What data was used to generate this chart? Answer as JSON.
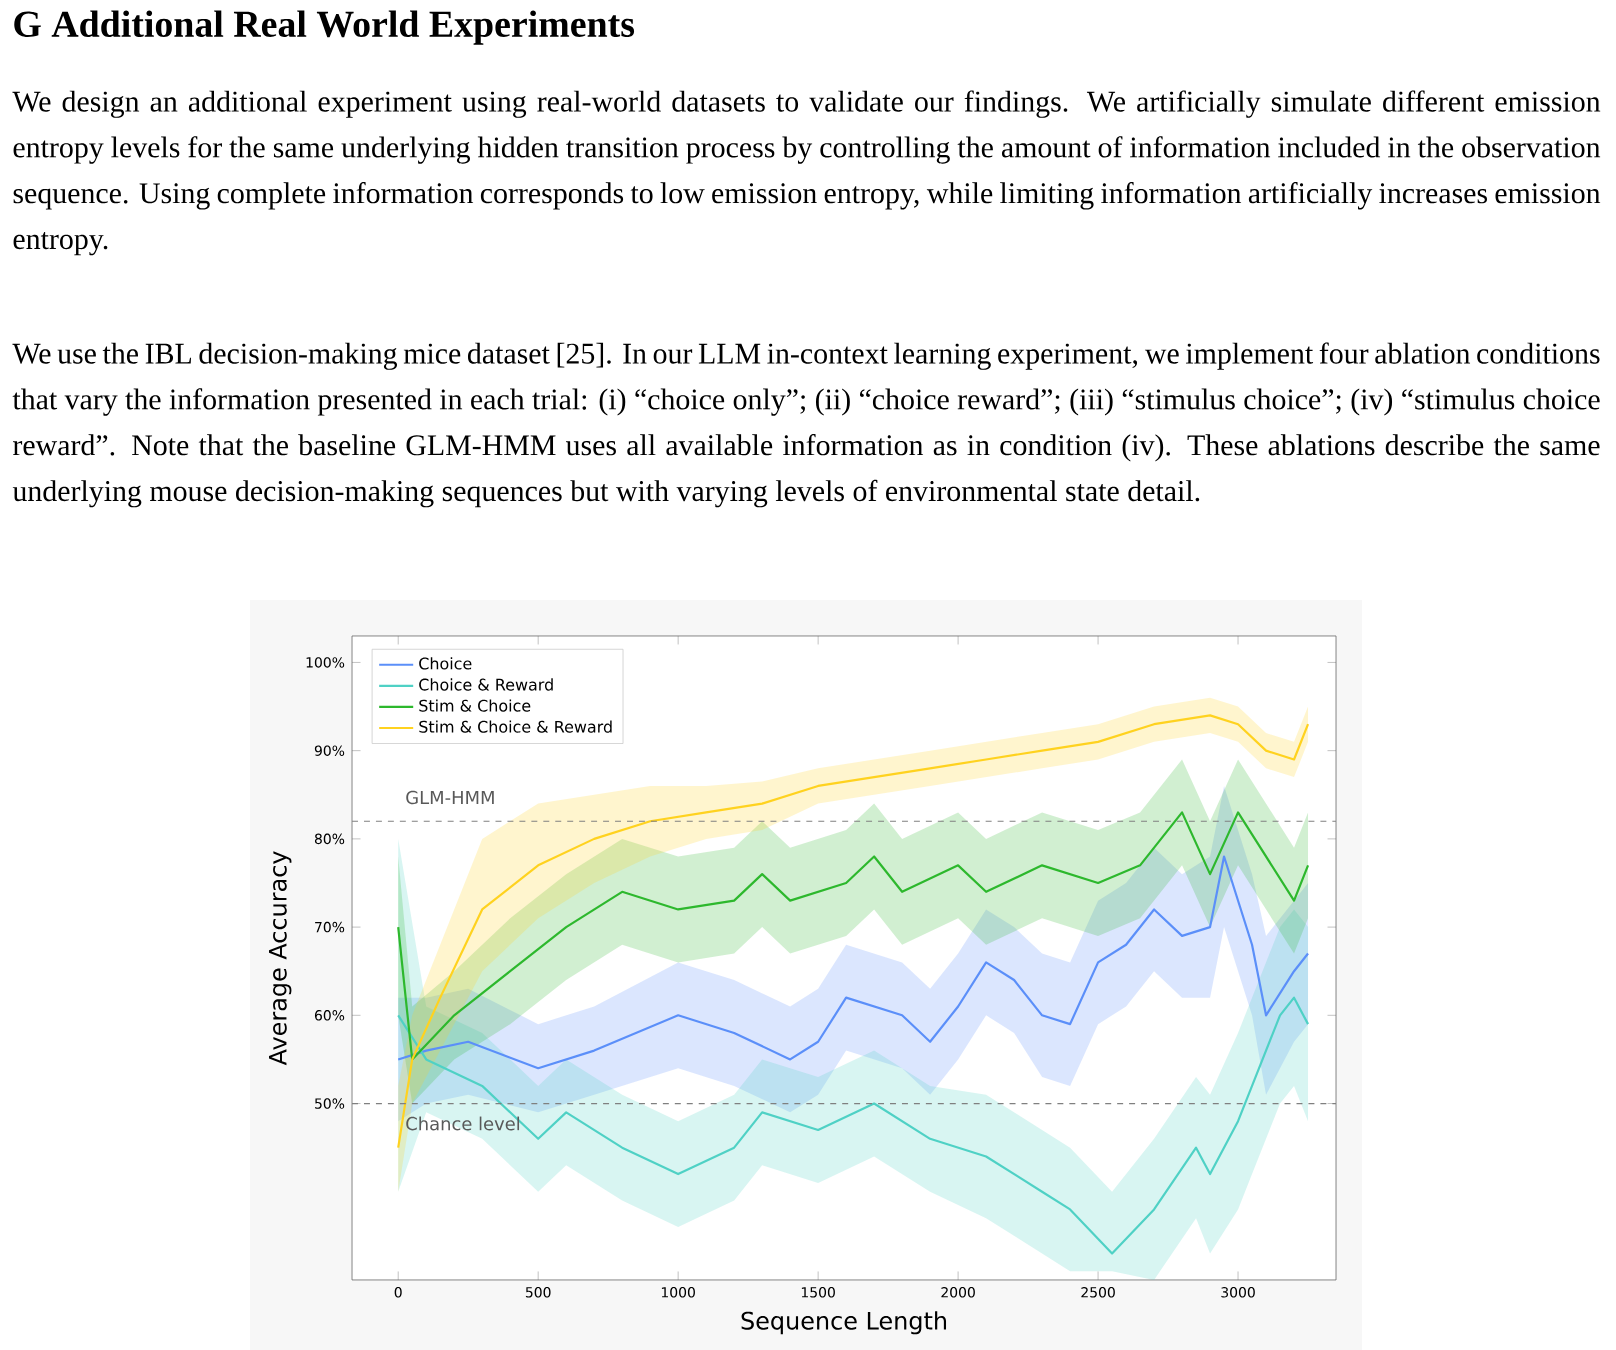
{
  "chart_data": {
    "type": "line",
    "title": "G Additional Real World Experiments",
    "annotations": [
      "We design an additional experiment using real-world datasets to validate our findings. We artificially simulate different emission entropy levels for the same underlying hidden transition process by controlling the amount of information included in the observation sequence. Using complete information corresponds to low emission entropy, while limiting information artificially increases emission entropy.",
      "We use the IBL decision-making mice dataset [25]. In our LLM in-context learning experiment, we implement four ablation conditions that vary the information presented in each trial: (i) “choice only”; (ii) “choice reward”; (iii) “stimulus choice”; (iv) “stimulus choice reward”. Note that the baseline GLM-HMM uses all available information as in condition (iv). These ablations describe the same underlying mouse decision-making sequences but with varying levels of environmental state detail."
    ],
    "xlabel": "Sequence Length",
    "ylabel": "Average Accuracy",
    "xlim": [
      -165,
      3350
    ],
    "ylim": [
      30,
      103
    ],
    "xticks": [
      0,
      500,
      1000,
      1500,
      2000,
      2500,
      3000
    ],
    "yticks": [
      {
        "value": 50,
        "label": "50%"
      },
      {
        "value": 60,
        "label": "60%"
      },
      {
        "value": 70,
        "label": "70%"
      },
      {
        "value": 80,
        "label": "80%"
      },
      {
        "value": 90,
        "label": "90%"
      },
      {
        "value": 100,
        "label": "100%"
      }
    ],
    "legend": "top left",
    "ref_lines": [
      {
        "axis": "y",
        "value": 82,
        "label": "GLM-HMM",
        "color": "#808080",
        "line_style": "dashed"
      },
      {
        "axis": "y",
        "value": 50,
        "label": "Chance level",
        "color": "#808080",
        "line_style": "dashed"
      }
    ],
    "series": [
      {
        "name": "Choice",
        "color": "#5b8ff9",
        "x": [
          0,
          100,
          250,
          500,
          700,
          1000,
          1200,
          1400,
          1500,
          1600,
          1800,
          1900,
          2000,
          2100,
          2200,
          2300,
          2400,
          2500,
          2600,
          2700,
          2800,
          2900,
          2950,
          3050,
          3100,
          3200,
          3250
        ],
        "values": [
          55,
          56,
          57,
          54,
          56,
          60,
          58,
          55,
          57,
          62,
          60,
          57,
          61,
          66,
          64,
          60,
          59,
          66,
          68,
          72,
          69,
          70,
          78,
          68,
          60,
          65,
          67
        ],
        "lower": [
          48,
          50,
          51,
          49,
          51,
          54,
          52,
          49,
          51,
          56,
          54,
          51,
          55,
          60,
          58,
          53,
          52,
          59,
          61,
          65,
          62,
          62,
          70,
          60,
          51,
          57,
          59
        ],
        "upper": [
          62,
          62,
          63,
          59,
          61,
          66,
          64,
          61,
          63,
          68,
          66,
          63,
          67,
          72,
          70,
          67,
          66,
          73,
          75,
          79,
          76,
          78,
          86,
          76,
          69,
          73,
          75
        ]
      },
      {
        "name": "Choice & Reward",
        "color": "#4fd1c5",
        "x": [
          0,
          10,
          100,
          300,
          500,
          600,
          800,
          1000,
          1200,
          1300,
          1500,
          1700,
          1900,
          2100,
          2300,
          2400,
          2550,
          2700,
          2850,
          2900,
          3000,
          3050,
          3150,
          3200,
          3250
        ],
        "values": [
          60,
          null,
          55,
          52,
          46,
          49,
          45,
          42,
          45,
          49,
          47,
          50,
          46,
          44,
          40,
          38,
          33,
          38,
          45,
          42,
          48,
          52,
          60,
          62,
          59
        ],
        "lower": [
          40,
          null,
          49,
          46,
          40,
          43,
          39,
          36,
          39,
          43,
          41,
          44,
          40,
          37,
          33,
          31,
          31,
          30,
          37,
          33,
          38,
          42,
          50,
          52,
          48
        ],
        "upper": [
          80,
          null,
          61,
          58,
          52,
          55,
          51,
          48,
          51,
          55,
          53,
          56,
          52,
          51,
          47,
          45,
          40,
          46,
          53,
          51,
          58,
          62,
          70,
          72,
          70
        ]
      },
      {
        "name": "Stim & Choice",
        "color": "#2db82d",
        "x": [
          0,
          50,
          200,
          400,
          600,
          800,
          1000,
          1200,
          1300,
          1400,
          1600,
          1700,
          1800,
          2000,
          2100,
          2300,
          2500,
          2650,
          2800,
          2900,
          3000,
          3100,
          3200,
          3250
        ],
        "values": [
          70,
          55,
          60,
          65,
          70,
          74,
          72,
          73,
          76,
          73,
          75,
          78,
          74,
          77,
          74,
          77,
          75,
          77,
          83,
          76,
          83,
          78,
          73,
          77
        ],
        "lower": [
          60,
          50,
          55,
          59,
          64,
          68,
          66,
          67,
          70,
          67,
          69,
          72,
          68,
          71,
          68,
          71,
          69,
          71,
          77,
          70,
          77,
          72,
          67,
          71
        ],
        "upper": [
          78,
          61,
          65,
          71,
          76,
          80,
          78,
          79,
          82,
          79,
          81,
          84,
          80,
          83,
          80,
          83,
          81,
          83,
          89,
          82,
          89,
          84,
          79,
          83
        ]
      },
      {
        "name": "Stim & Choice & Reward",
        "color": "#ffd21f",
        "x": [
          0,
          50,
          150,
          300,
          500,
          700,
          900,
          1100,
          1300,
          1500,
          1700,
          1900,
          2100,
          2300,
          2500,
          2700,
          2900,
          3000,
          3100,
          3200,
          3250
        ],
        "values": [
          45,
          55,
          62,
          72,
          77,
          80,
          82,
          83,
          84,
          86,
          87,
          88,
          89,
          90,
          91,
          93,
          94,
          93,
          90,
          89,
          93
        ],
        "lower": [
          40,
          50,
          56,
          65,
          71,
          75,
          78,
          80,
          81,
          84,
          85,
          86,
          87,
          88,
          89,
          91,
          92,
          91,
          88,
          87,
          91
        ],
        "upper": [
          52,
          60,
          68,
          80,
          84,
          85,
          86,
          86,
          86.5,
          88,
          89,
          90,
          91,
          92,
          93,
          95,
          96,
          95,
          92,
          91,
          95
        ]
      }
    ]
  }
}
